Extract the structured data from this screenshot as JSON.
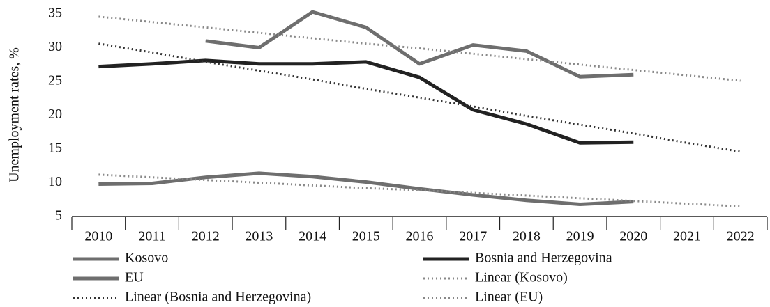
{
  "chart_data": {
    "type": "line",
    "ylabel": "Unemployment rates, %",
    "categories": [
      "2010",
      "2011",
      "2012",
      "2013",
      "2014",
      "2015",
      "2016",
      "2017",
      "2018",
      "2019",
      "2020",
      "2021",
      "2022"
    ],
    "ylim": [
      5,
      35
    ],
    "yticks": [
      5,
      10,
      15,
      20,
      25,
      30,
      35
    ],
    "grid": false,
    "legend": "bottom",
    "series": [
      {
        "name": "Kosovo",
        "color": "#6e6e6e",
        "style": "solid",
        "values": [
          null,
          null,
          31.0,
          30.0,
          35.3,
          33.0,
          27.6,
          30.4,
          29.5,
          25.7,
          26.0,
          null,
          null
        ]
      },
      {
        "name": "Bosnia and Herzegovina",
        "color": "#222222",
        "style": "solid",
        "values": [
          27.2,
          27.6,
          28.1,
          27.6,
          27.6,
          27.9,
          25.6,
          20.8,
          18.7,
          15.9,
          16.0,
          null,
          null
        ]
      },
      {
        "name": "EU",
        "color": "#6e6e6e",
        "style": "solid",
        "values": [
          9.8,
          9.9,
          10.8,
          11.4,
          10.9,
          10.1,
          9.1,
          8.2,
          7.4,
          6.8,
          7.2,
          null,
          null
        ]
      },
      {
        "name": "Linear (Kosovo)",
        "color": "#888888",
        "style": "dotted",
        "values": [
          34.6,
          33.8,
          33.0,
          32.2,
          31.4,
          30.6,
          29.9,
          29.1,
          28.3,
          27.5,
          26.7,
          25.9,
          25.1
        ]
      },
      {
        "name": "Linear (Bosnia and Herzegovina)",
        "color": "#333333",
        "style": "dotted",
        "values": [
          30.6,
          29.3,
          27.9,
          26.6,
          25.3,
          23.9,
          22.6,
          21.3,
          19.9,
          18.6,
          17.3,
          15.9,
          14.6
        ]
      },
      {
        "name": "Linear (EU)",
        "color": "#888888",
        "style": "dotted",
        "values": [
          11.2,
          10.8,
          10.4,
          10.0,
          9.6,
          9.2,
          8.9,
          8.5,
          8.1,
          7.7,
          7.3,
          6.9,
          6.5
        ]
      }
    ]
  }
}
